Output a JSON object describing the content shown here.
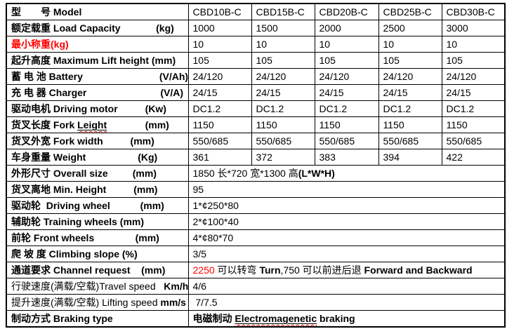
{
  "table": {
    "border_color": "#000000",
    "text_color": "#000000",
    "accent_red": "#ff0000",
    "models": [
      "CBD10B-C",
      "CBD15B-C",
      "CBD20B-C",
      "CBD25B-C",
      "CBD30B-C"
    ],
    "rows": [
      {
        "name": "model",
        "label": [
          {
            "t": "型　　号 Model",
            "b": true
          }
        ],
        "values": [
          "CBD10B-C",
          "CBD15B-C",
          "CBD20B-C",
          "CBD25B-C",
          "CBD30B-C"
        ]
      },
      {
        "name": "load-capacity",
        "label": [
          {
            "t": "额定载重 Load Capacity             (kg)",
            "b": true
          }
        ],
        "values": [
          "1000",
          "1500",
          "2000",
          "2500",
          "3000"
        ]
      },
      {
        "name": "min-weighing",
        "label": [
          {
            "t": "最小称重(kg)",
            "b": true,
            "red": true
          }
        ],
        "values": [
          "10",
          "10",
          "10",
          "10",
          "10"
        ]
      },
      {
        "name": "max-lift-height",
        "label": [
          {
            "t": "起升高度 Maximum Lift height (mm)",
            "b": true
          }
        ],
        "values": [
          "105",
          "105",
          "105",
          "105",
          "105"
        ]
      },
      {
        "name": "battery",
        "label": [
          {
            "t": "蓄 电 池 Battery                            (V/Ah)",
            "b": true
          }
        ],
        "values": [
          "24/120",
          "24/120",
          "24/120",
          "24/120",
          "24/120"
        ]
      },
      {
        "name": "charger",
        "label": [
          {
            "t": "充 电 器 Charger                           (V/A)",
            "b": true
          }
        ],
        "values": [
          "24/15",
          "24/15",
          "24/15",
          "24/15",
          "24/15"
        ]
      },
      {
        "name": "driving-motor",
        "label": [
          {
            "t": "驱动电机 Driving motor          (Kw)",
            "b": true
          }
        ],
        "values": [
          "DC1.2",
          "DC1.2",
          "DC1.2",
          "DC1.2",
          "DC1.2"
        ]
      },
      {
        "name": "fork-length",
        "label": [
          {
            "t": "货叉长度 Fork ",
            "b": true
          },
          {
            "t": "Leight",
            "b": true,
            "u": true,
            "w": true
          },
          {
            "t": "              (mm)",
            "b": true
          }
        ],
        "values": [
          "1150",
          "1150",
          "1150",
          "1150",
          "1150"
        ]
      },
      {
        "name": "fork-width",
        "label": [
          {
            "t": "货叉外宽 Fork width          (mm)",
            "b": true
          }
        ],
        "values": [
          "550/685",
          "550/685",
          "550/685",
          "550/685",
          "550/685"
        ]
      },
      {
        "name": "weight",
        "label": [
          {
            "t": "车身重量 Weight                   (Kg)",
            "b": true
          }
        ],
        "values": [
          "361",
          "372",
          "383",
          "394",
          "422"
        ]
      },
      {
        "name": "overall-size",
        "label": [
          {
            "t": "外形尺寸 Overall size         (mm)",
            "b": true
          }
        ],
        "span": [
          {
            "t": "1850 长*720 宽*1300 高"
          },
          {
            "t": "(L*W*H)",
            "b": true
          }
        ]
      },
      {
        "name": "min-height",
        "label": [
          {
            "t": "货叉离地 Min. Height          (mm)",
            "b": true
          }
        ],
        "span": [
          {
            "t": "95"
          }
        ]
      },
      {
        "name": "driving-wheel",
        "label": [
          {
            "t": "驱动轮  Driving wheel           (mm)",
            "b": true
          }
        ],
        "span": [
          {
            "t": "1*¢250*80"
          }
        ]
      },
      {
        "name": "training-wheels",
        "label": [
          {
            "t": "辅助轮 Training wheels (mm)",
            "b": true
          }
        ],
        "span": [
          {
            "t": "2*¢100*40"
          }
        ]
      },
      {
        "name": "front-wheels",
        "label": [
          {
            "t": "前轮 Front wheels               (mm)",
            "b": true
          }
        ],
        "span": [
          {
            "t": "4*¢80*70"
          }
        ]
      },
      {
        "name": "climbing-slope",
        "label": [
          {
            "t": "爬 坡 度 Climbing slope (%)",
            "b": true
          }
        ],
        "span": [
          {
            "t": "3/5"
          }
        ]
      },
      {
        "name": "channel-request",
        "label": [
          {
            "t": "通道要求 Channel request    (mm)",
            "b": true
          }
        ],
        "span": [
          {
            "t": "2250",
            "red": true
          },
          {
            "t": " 可以转弯 "
          },
          {
            "t": "Turn",
            "b": true
          },
          {
            "t": ",750 可以前进后退 "
          },
          {
            "t": "Forward and Backward",
            "b": true
          }
        ]
      },
      {
        "name": "travel-speed",
        "label": [
          {
            "t": "行驶速度(满载/空载)Travel speed   "
          },
          {
            "t": "Km/h",
            "b": true
          }
        ],
        "span": [
          {
            "t": "4/6"
          }
        ]
      },
      {
        "name": "lifting-speed",
        "label": [
          {
            "t": "提升速度(满载/空载) Lifting speed "
          },
          {
            "t": "mm/s",
            "b": true
          }
        ],
        "span": [
          {
            "t": " 7/7.5"
          }
        ]
      },
      {
        "name": "braking-type",
        "label": [
          {
            "t": "制动方式 Braking type",
            "b": true
          }
        ],
        "span": [
          {
            "t": "电磁制动 ",
            "b": true
          },
          {
            "t": "Electromagenetic",
            "b": true,
            "u": true,
            "w": true
          },
          {
            "t": " braking",
            "b": true
          }
        ]
      }
    ]
  }
}
